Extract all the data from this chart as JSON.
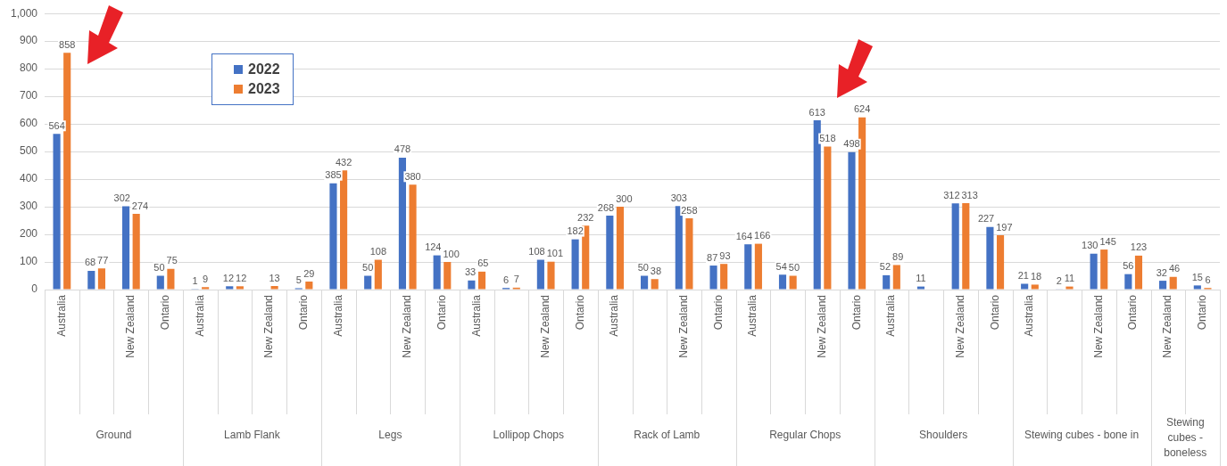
{
  "chart_data": {
    "type": "bar",
    "categories": [
      "Australia",
      null,
      "New Zealand",
      "Ontario",
      "Australia",
      null,
      "New Zealand",
      "Ontario",
      "Australia",
      null,
      "New Zealand",
      "Ontario",
      "Australia",
      null,
      "New Zealand",
      "Ontario",
      "Australia",
      null,
      "New Zealand",
      "Ontario",
      "Australia",
      null,
      "New Zealand",
      "Ontario",
      "Australia",
      null,
      "New Zealand",
      "Ontario",
      "Australia",
      null,
      "New Zealand",
      "Ontario",
      "New Zealand",
      "Ontario"
    ],
    "series": [
      {
        "name": "2022",
        "color": "#4472c4",
        "values": [
          564,
          68,
          302,
          50,
          1,
          12,
          null,
          5,
          385,
          50,
          478,
          124,
          33,
          6,
          108,
          182,
          268,
          50,
          303,
          87,
          164,
          54,
          613,
          498,
          52,
          11,
          312,
          227,
          21,
          2,
          130,
          56,
          32,
          15
        ]
      },
      {
        "name": "2023",
        "color": "#ed7d31",
        "values": [
          858,
          77,
          274,
          75,
          9,
          12,
          13,
          29,
          432,
          108,
          380,
          100,
          65,
          7,
          101,
          232,
          300,
          38,
          258,
          93,
          166,
          50,
          518,
          624,
          89,
          null,
          313,
          197,
          18,
          11,
          145,
          123,
          46,
          6
        ]
      }
    ],
    "annotations": [
      "Ground",
      "Lamb Flank",
      "Legs",
      "Lollipop Chops",
      "Rack of Lamb",
      "Regular Chops",
      "Shoulders",
      "Stewing cubes - bone in",
      "Stewing cubes - boneless"
    ],
    "ylim": [
      0,
      1000
    ],
    "yticks": [
      0,
      {
        "value": 100,
        "label": "100"
      },
      200,
      300,
      400,
      500,
      600,
      700,
      800,
      900,
      {
        "value": 1000,
        "label": "1,000"
      }
    ],
    "grid": "y",
    "legend": "top left",
    "data_labels": true
  }
}
